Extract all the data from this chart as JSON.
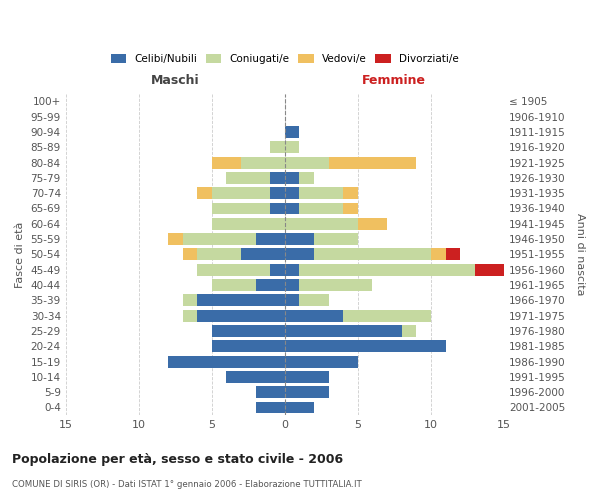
{
  "age_groups": [
    "100+",
    "95-99",
    "90-94",
    "85-89",
    "80-84",
    "75-79",
    "70-74",
    "65-69",
    "60-64",
    "55-59",
    "50-54",
    "45-49",
    "40-44",
    "35-39",
    "30-34",
    "25-29",
    "20-24",
    "15-19",
    "10-14",
    "5-9",
    "0-4"
  ],
  "birth_years": [
    "≤ 1905",
    "1906-1910",
    "1911-1915",
    "1916-1920",
    "1921-1925",
    "1926-1930",
    "1931-1935",
    "1936-1940",
    "1941-1945",
    "1946-1950",
    "1951-1955",
    "1956-1960",
    "1961-1965",
    "1966-1970",
    "1971-1975",
    "1976-1980",
    "1981-1985",
    "1986-1990",
    "1991-1995",
    "1996-2000",
    "2001-2005"
  ],
  "maschi_celibi": [
    0,
    0,
    0,
    0,
    0,
    1,
    1,
    1,
    0,
    2,
    3,
    1,
    2,
    6,
    6,
    5,
    5,
    8,
    4,
    2,
    2
  ],
  "maschi_coniugati": [
    0,
    0,
    0,
    1,
    3,
    3,
    4,
    4,
    5,
    5,
    3,
    5,
    3,
    1,
    1,
    0,
    0,
    0,
    0,
    0,
    0
  ],
  "maschi_vedovi": [
    0,
    0,
    0,
    0,
    2,
    0,
    1,
    0,
    0,
    1,
    1,
    0,
    0,
    0,
    0,
    0,
    0,
    0,
    0,
    0,
    0
  ],
  "maschi_divorziati": [
    0,
    0,
    0,
    0,
    0,
    0,
    0,
    0,
    0,
    0,
    0,
    0,
    0,
    0,
    0,
    0,
    0,
    0,
    0,
    0,
    0
  ],
  "femmine_nubili": [
    0,
    0,
    1,
    0,
    0,
    1,
    1,
    1,
    0,
    2,
    2,
    1,
    1,
    1,
    4,
    8,
    11,
    5,
    3,
    3,
    2
  ],
  "femmine_coniugate": [
    0,
    0,
    0,
    1,
    3,
    1,
    3,
    3,
    5,
    3,
    8,
    12,
    5,
    2,
    6,
    1,
    0,
    0,
    0,
    0,
    0
  ],
  "femmine_vedove": [
    0,
    0,
    0,
    0,
    6,
    0,
    1,
    1,
    2,
    0,
    1,
    0,
    0,
    0,
    0,
    0,
    0,
    0,
    0,
    0,
    0
  ],
  "femmine_divorziate": [
    0,
    0,
    0,
    0,
    0,
    0,
    0,
    0,
    0,
    0,
    1,
    2,
    0,
    0,
    0,
    0,
    0,
    0,
    0,
    0,
    0
  ],
  "color_celibi": "#3a6ca8",
  "color_coniugati": "#c5d9a0",
  "color_vedovi": "#f0c060",
  "color_divorziati": "#cc2020",
  "title": "Popolazione per età, sesso e stato civile - 2006",
  "subtitle": "COMUNE DI SIRIS (OR) - Dati ISTAT 1° gennaio 2006 - Elaborazione TUTTITALIA.IT",
  "xlabel_left": "Maschi",
  "xlabel_right": "Femmine",
  "ylabel_left": "Fasce di età",
  "ylabel_right": "Anni di nascita",
  "xlim": 15,
  "bg_color": "#ffffff",
  "grid_color": "#cccccc",
  "bar_height": 0.78
}
